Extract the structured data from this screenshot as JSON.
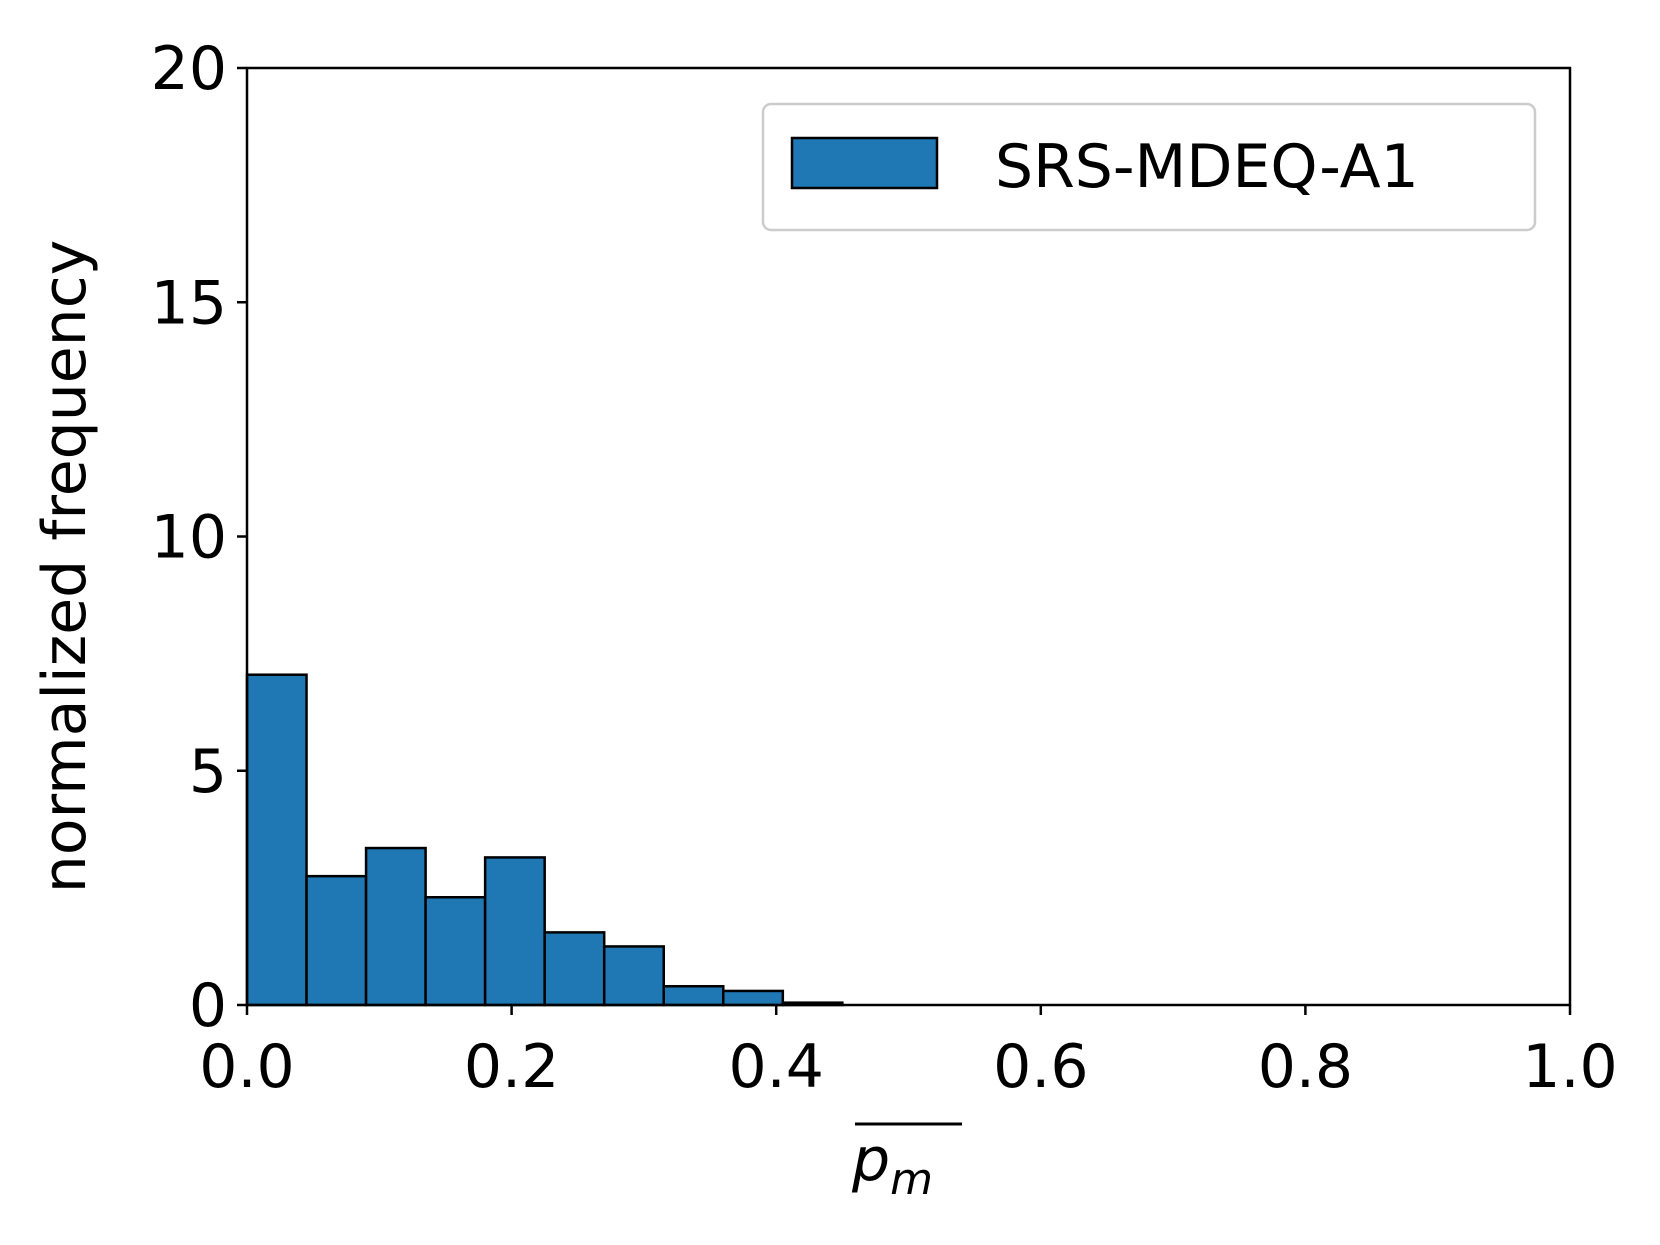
{
  "chart_data": {
    "type": "bar",
    "histogram": true,
    "xlabel": "p",
    "xlabel_subscript": "m",
    "ylabel": "normalized frequency",
    "xlim": [
      0.0,
      1.0
    ],
    "ylim": [
      0,
      20
    ],
    "xticks": [
      "0.0",
      "0.2",
      "0.4",
      "0.6",
      "0.8",
      "1.0"
    ],
    "xtick_values": [
      0.0,
      0.2,
      0.4,
      0.6,
      0.8,
      1.0
    ],
    "yticks": [
      "0",
      "5",
      "10",
      "15",
      "20"
    ],
    "ytick_values": [
      0,
      5,
      10,
      15,
      20
    ],
    "grid": false,
    "legend_position": "top-right",
    "series": [
      {
        "name": "SRS-MDEQ-A1",
        "color": "#1f77b4",
        "bin_edges": [
          0.0,
          0.045,
          0.09,
          0.135,
          0.18,
          0.225,
          0.27,
          0.315,
          0.36,
          0.405,
          0.45
        ],
        "values": [
          7.05,
          2.75,
          3.35,
          2.3,
          3.15,
          1.55,
          1.25,
          0.4,
          0.3,
          0.05
        ]
      }
    ]
  }
}
